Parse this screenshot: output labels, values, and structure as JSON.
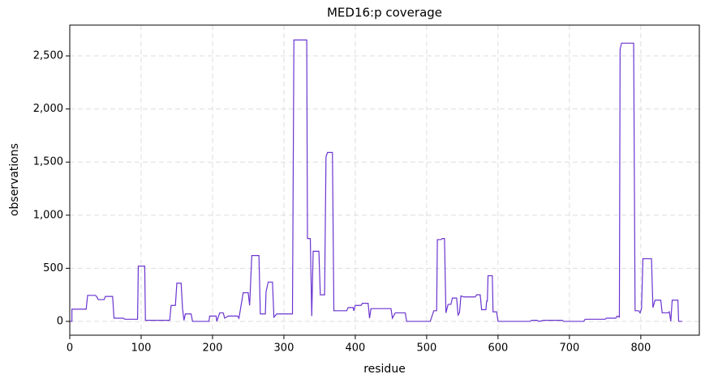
{
  "chart_data": {
    "type": "line",
    "title": "MED16:p coverage",
    "x_label": "residue",
    "y_label": "observations",
    "x": [
      0,
      3,
      3,
      23,
      25,
      36,
      38,
      40,
      48,
      50,
      60,
      62,
      75,
      77,
      95,
      96,
      105,
      106,
      140,
      142,
      148,
      150,
      156,
      158,
      160,
      162,
      170,
      172,
      195,
      196,
      205,
      206,
      210,
      215,
      217,
      222,
      235,
      237,
      243,
      250,
      252,
      255,
      265,
      267,
      274,
      275,
      278,
      284,
      286,
      290,
      312,
      314,
      332,
      333,
      337,
      339,
      341,
      349,
      351,
      357,
      359,
      361,
      368,
      370,
      388,
      390,
      397,
      398,
      400,
      408,
      410,
      418,
      420,
      422,
      450,
      452,
      456,
      470,
      472,
      505,
      510,
      514,
      515,
      520,
      522,
      525,
      527,
      530,
      534,
      536,
      542,
      544,
      546,
      548,
      552,
      568,
      570,
      575,
      577,
      583,
      584,
      585,
      586,
      592,
      593,
      598,
      600,
      645,
      647,
      655,
      657,
      664,
      690,
      692,
      720,
      722,
      750,
      752,
      765,
      767,
      770,
      771,
      773,
      790,
      792,
      797,
      799,
      801,
      803,
      815,
      817,
      820,
      828,
      830,
      838,
      840,
      842,
      844,
      852,
      853,
      858
    ],
    "values": [
      0,
      0,
      115,
      115,
      245,
      245,
      230,
      205,
      205,
      235,
      235,
      30,
      30,
      20,
      20,
      520,
      520,
      10,
      10,
      150,
      150,
      360,
      360,
      120,
      10,
      70,
      70,
      0,
      0,
      50,
      50,
      0,
      80,
      80,
      30,
      50,
      50,
      30,
      270,
      270,
      150,
      620,
      620,
      70,
      70,
      280,
      370,
      370,
      40,
      70,
      70,
      2650,
      2650,
      780,
      780,
      50,
      660,
      660,
      250,
      250,
      1550,
      1590,
      1590,
      100,
      100,
      130,
      130,
      100,
      150,
      150,
      170,
      170,
      30,
      120,
      120,
      30,
      80,
      80,
      0,
      0,
      100,
      100,
      770,
      770,
      780,
      780,
      80,
      160,
      160,
      220,
      220,
      60,
      80,
      240,
      230,
      230,
      250,
      250,
      110,
      110,
      190,
      190,
      430,
      430,
      90,
      90,
      0,
      0,
      10,
      10,
      0,
      10,
      10,
      0,
      0,
      20,
      20,
      30,
      30,
      50,
      40,
      2560,
      2620,
      2620,
      100,
      100,
      80,
      120,
      590,
      590,
      130,
      200,
      200,
      80,
      80,
      90,
      0,
      200,
      200,
      0,
      0
    ],
    "color": "#6a34d0",
    "xlim": [
      0,
      882
    ],
    "ylim": [
      -130,
      2790
    ],
    "xticks": [
      0,
      100,
      200,
      300,
      400,
      500,
      600,
      700,
      800
    ],
    "yticks": [
      0,
      500,
      {
        "value": 1000,
        "label": "1,000"
      },
      {
        "value": 1500,
        "label": "1,500"
      },
      {
        "value": 2000,
        "label": "2,000"
      },
      {
        "value": 2500,
        "label": "2,500"
      }
    ],
    "grid": true
  }
}
